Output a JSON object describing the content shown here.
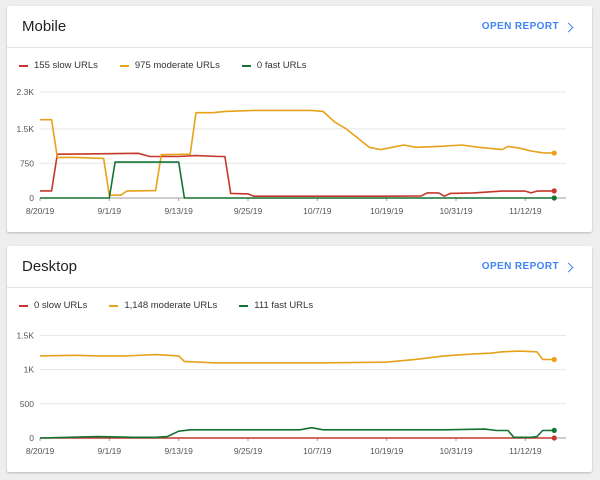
{
  "colors": {
    "slow": "#c5382b",
    "moderate": "#e8a11a",
    "fast": "#137333",
    "link": "#4285f4"
  },
  "cards": [
    {
      "id": "mobile",
      "title": "Mobile",
      "open_report": "OPEN REPORT",
      "legend": [
        "155 slow URLs",
        "975 moderate URLs",
        "0 fast URLs"
      ]
    },
    {
      "id": "desktop",
      "title": "Desktop",
      "open_report": "OPEN REPORT",
      "legend": [
        "0 slow URLs",
        "1,148 moderate URLs",
        "111 fast URLs"
      ]
    }
  ],
  "chart_data": [
    {
      "type": "line",
      "x_tick_labels": [
        "8/20/19",
        "9/1/19",
        "9/13/19",
        "9/25/19",
        "10/7/19",
        "10/19/19",
        "10/31/19",
        "11/12/19"
      ],
      "y_tick_labels": [
        "0",
        "750",
        "1.5K",
        "2.3K"
      ],
      "y_ticks": [
        0,
        750,
        1500,
        2300
      ],
      "ylim": [
        0,
        2300
      ],
      "x_days": 90,
      "series": [
        {
          "name": "155 slow URLs",
          "color": "slow",
          "points": [
            [
              0,
              155
            ],
            [
              2,
              155
            ],
            [
              3,
              950
            ],
            [
              10,
              960
            ],
            [
              17,
              970
            ],
            [
              19,
              900
            ],
            [
              24,
              900
            ],
            [
              27,
              920
            ],
            [
              31,
              900
            ],
            [
              32,
              900
            ],
            [
              33,
              100
            ],
            [
              36,
              90
            ],
            [
              37,
              40
            ],
            [
              50,
              40
            ],
            [
              60,
              40
            ],
            [
              66,
              45
            ],
            [
              67,
              110
            ],
            [
              69,
              110
            ],
            [
              70,
              40
            ],
            [
              71,
              100
            ],
            [
              75,
              110
            ],
            [
              80,
              150
            ],
            [
              84,
              150
            ],
            [
              85,
              110
            ],
            [
              86,
              150
            ],
            [
              89,
              155
            ]
          ]
        },
        {
          "name": "975 moderate URLs",
          "color": "moderate",
          "points": [
            [
              0,
              1700
            ],
            [
              2,
              1700
            ],
            [
              3,
              880
            ],
            [
              6,
              880
            ],
            [
              11,
              860
            ],
            [
              12,
              60
            ],
            [
              14,
              60
            ],
            [
              15,
              150
            ],
            [
              20,
              160
            ],
            [
              21,
              940
            ],
            [
              26,
              950
            ],
            [
              27,
              1850
            ],
            [
              30,
              1850
            ],
            [
              32,
              1880
            ],
            [
              37,
              1900
            ],
            [
              44,
              1900
            ],
            [
              47,
              1900
            ],
            [
              49,
              1880
            ],
            [
              51,
              1650
            ],
            [
              53,
              1500
            ],
            [
              55,
              1300
            ],
            [
              57,
              1100
            ],
            [
              59,
              1050
            ],
            [
              61,
              1100
            ],
            [
              63,
              1150
            ],
            [
              65,
              1100
            ],
            [
              69,
              1120
            ],
            [
              73,
              1150
            ],
            [
              76,
              1100
            ],
            [
              80,
              1050
            ],
            [
              81,
              1120
            ],
            [
              83,
              1080
            ],
            [
              85,
              1020
            ],
            [
              87,
              980
            ],
            [
              89,
              975
            ]
          ]
        },
        {
          "name": "0 fast URLs",
          "color": "fast",
          "points": [
            [
              0,
              0
            ],
            [
              12,
              0
            ],
            [
              13,
              780
            ],
            [
              24,
              780
            ],
            [
              25,
              0
            ],
            [
              89,
              0
            ]
          ]
        }
      ]
    },
    {
      "type": "line",
      "x_tick_labels": [
        "8/20/19",
        "9/1/19",
        "9/13/19",
        "9/25/19",
        "10/7/19",
        "10/19/19",
        "10/31/19",
        "11/12/19"
      ],
      "y_tick_labels": [
        "0",
        "500",
        "1K",
        "1.5K"
      ],
      "y_ticks": [
        0,
        500,
        1000,
        1500
      ],
      "ylim": [
        0,
        1550
      ],
      "x_days": 90,
      "series": [
        {
          "name": "0 slow URLs",
          "color": "slow",
          "points": [
            [
              0,
              0
            ],
            [
              89,
              0
            ]
          ]
        },
        {
          "name": "1,148 moderate URLs",
          "color": "moderate",
          "points": [
            [
              0,
              1200
            ],
            [
              6,
              1210
            ],
            [
              10,
              1200
            ],
            [
              15,
              1200
            ],
            [
              20,
              1220
            ],
            [
              24,
              1200
            ],
            [
              25,
              1120
            ],
            [
              30,
              1100
            ],
            [
              40,
              1100
            ],
            [
              50,
              1100
            ],
            [
              60,
              1110
            ],
            [
              65,
              1150
            ],
            [
              70,
              1200
            ],
            [
              75,
              1230
            ],
            [
              78,
              1240
            ],
            [
              80,
              1260
            ],
            [
              83,
              1270
            ],
            [
              86,
              1260
            ],
            [
              87,
              1150
            ],
            [
              89,
              1148
            ]
          ]
        },
        {
          "name": "111 fast URLs",
          "color": "fast",
          "points": [
            [
              0,
              0
            ],
            [
              10,
              20
            ],
            [
              16,
              10
            ],
            [
              20,
              10
            ],
            [
              22,
              20
            ],
            [
              24,
              100
            ],
            [
              26,
              120
            ],
            [
              35,
              120
            ],
            [
              45,
              120
            ],
            [
              47,
              150
            ],
            [
              49,
              120
            ],
            [
              60,
              120
            ],
            [
              70,
              120
            ],
            [
              77,
              130
            ],
            [
              79,
              110
            ],
            [
              81,
              110
            ],
            [
              82,
              10
            ],
            [
              85,
              10
            ],
            [
              86,
              20
            ],
            [
              87,
              110
            ],
            [
              89,
              111
            ]
          ]
        }
      ]
    }
  ]
}
